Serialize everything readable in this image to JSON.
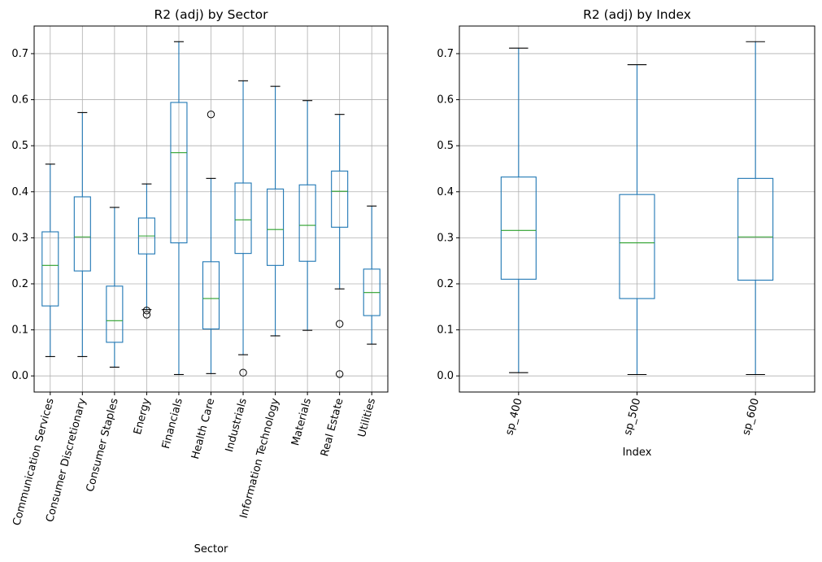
{
  "chart_data": [
    {
      "type": "box",
      "title": "R2 (adj) by Sector",
      "xlabel": "Sector",
      "ylabel": "",
      "ylim": [
        -0.035,
        0.76
      ],
      "yticks": [
        0.0,
        0.1,
        0.2,
        0.3,
        0.4,
        0.5,
        0.6,
        0.7
      ],
      "ytick_labels": [
        "0.0",
        "0.1",
        "0.2",
        "0.3",
        "0.4",
        "0.5",
        "0.6",
        "0.7"
      ],
      "grid": true,
      "colors": {
        "box": "#1f77b4",
        "median": "#2ca02c",
        "cap": "#000000"
      },
      "categories": [
        {
          "label": "Communication Services",
          "whislo": 0.042,
          "q1": 0.152,
          "median": 0.24,
          "q3": 0.313,
          "whishi": 0.46,
          "fliers": []
        },
        {
          "label": "Consumer Discretionary",
          "whislo": 0.042,
          "q1": 0.228,
          "median": 0.302,
          "q3": 0.389,
          "whishi": 0.572,
          "fliers": []
        },
        {
          "label": "Consumer Staples",
          "whislo": 0.019,
          "q1": 0.073,
          "median": 0.12,
          "q3": 0.195,
          "whishi": 0.366,
          "fliers": []
        },
        {
          "label": "Energy",
          "whislo": 0.144,
          "q1": 0.265,
          "median": 0.304,
          "q3": 0.343,
          "whishi": 0.417,
          "fliers": [
            0.133,
            0.142
          ]
        },
        {
          "label": "Financials",
          "whislo": 0.003,
          "q1": 0.289,
          "median": 0.485,
          "q3": 0.594,
          "whishi": 0.726,
          "fliers": []
        },
        {
          "label": "Health Care",
          "whislo": 0.005,
          "q1": 0.102,
          "median": 0.168,
          "q3": 0.248,
          "whishi": 0.429,
          "fliers": [
            0.568
          ]
        },
        {
          "label": "Industrials",
          "whislo": 0.046,
          "q1": 0.266,
          "median": 0.339,
          "q3": 0.419,
          "whishi": 0.641,
          "fliers": [
            0.007
          ]
        },
        {
          "label": "Information Technology",
          "whislo": 0.087,
          "q1": 0.24,
          "median": 0.318,
          "q3": 0.406,
          "whishi": 0.629,
          "fliers": []
        },
        {
          "label": "Materials",
          "whislo": 0.099,
          "q1": 0.249,
          "median": 0.327,
          "q3": 0.415,
          "whishi": 0.598,
          "fliers": []
        },
        {
          "label": "Real Estate",
          "whislo": 0.189,
          "q1": 0.323,
          "median": 0.401,
          "q3": 0.445,
          "whishi": 0.568,
          "fliers": [
            0.113,
            0.004
          ]
        },
        {
          "label": "Utilities",
          "whislo": 0.069,
          "q1": 0.131,
          "median": 0.181,
          "q3": 0.232,
          "whishi": 0.369,
          "fliers": []
        }
      ]
    },
    {
      "type": "box",
      "title": "R2 (adj) by Index",
      "xlabel": "Index",
      "ylabel": "",
      "ylim": [
        -0.035,
        0.76
      ],
      "yticks": [
        0.0,
        0.1,
        0.2,
        0.3,
        0.4,
        0.5,
        0.6,
        0.7
      ],
      "ytick_labels": [
        "0.0",
        "0.1",
        "0.2",
        "0.3",
        "0.4",
        "0.5",
        "0.6",
        "0.7"
      ],
      "grid": true,
      "colors": {
        "box": "#1f77b4",
        "median": "#2ca02c",
        "cap": "#000000"
      },
      "categories": [
        {
          "label": "sp_400",
          "whislo": 0.007,
          "q1": 0.21,
          "median": 0.316,
          "q3": 0.432,
          "whishi": 0.712,
          "fliers": []
        },
        {
          "label": "sp_500",
          "whislo": 0.003,
          "q1": 0.168,
          "median": 0.289,
          "q3": 0.394,
          "whishi": 0.676,
          "fliers": []
        },
        {
          "label": "sp_600",
          "whislo": 0.003,
          "q1": 0.208,
          "median": 0.302,
          "q3": 0.429,
          "whishi": 0.726,
          "fliers": []
        }
      ]
    }
  ]
}
